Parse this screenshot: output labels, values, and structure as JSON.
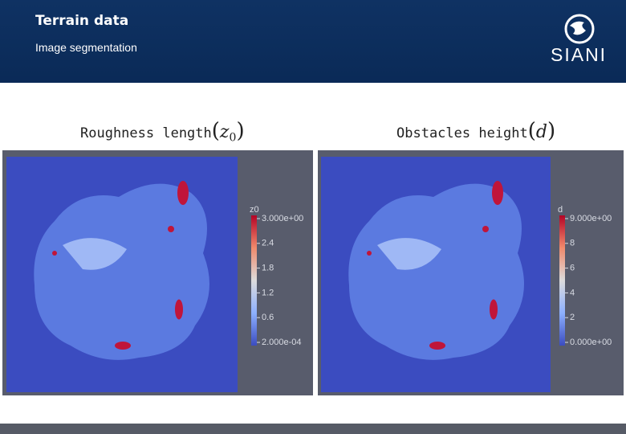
{
  "header": {
    "title": "Terrain data",
    "subtitle": "Image segmentation",
    "logo": "SIANI"
  },
  "panels": [
    {
      "label": "Roughness length",
      "symbol": "z",
      "subscript": "0",
      "colorbar": {
        "title": "z0",
        "labels": [
          "3.000e+00",
          "2.4",
          "1.8",
          "1.2",
          "0.6",
          "2.000e-04"
        ]
      }
    },
    {
      "label": "Obstacles height",
      "symbol": "d",
      "subscript": "",
      "colorbar": {
        "title": "d",
        "labels": [
          "9.000e+00",
          "8",
          "6",
          "4",
          "2",
          "0.000e+00"
        ]
      }
    }
  ]
}
